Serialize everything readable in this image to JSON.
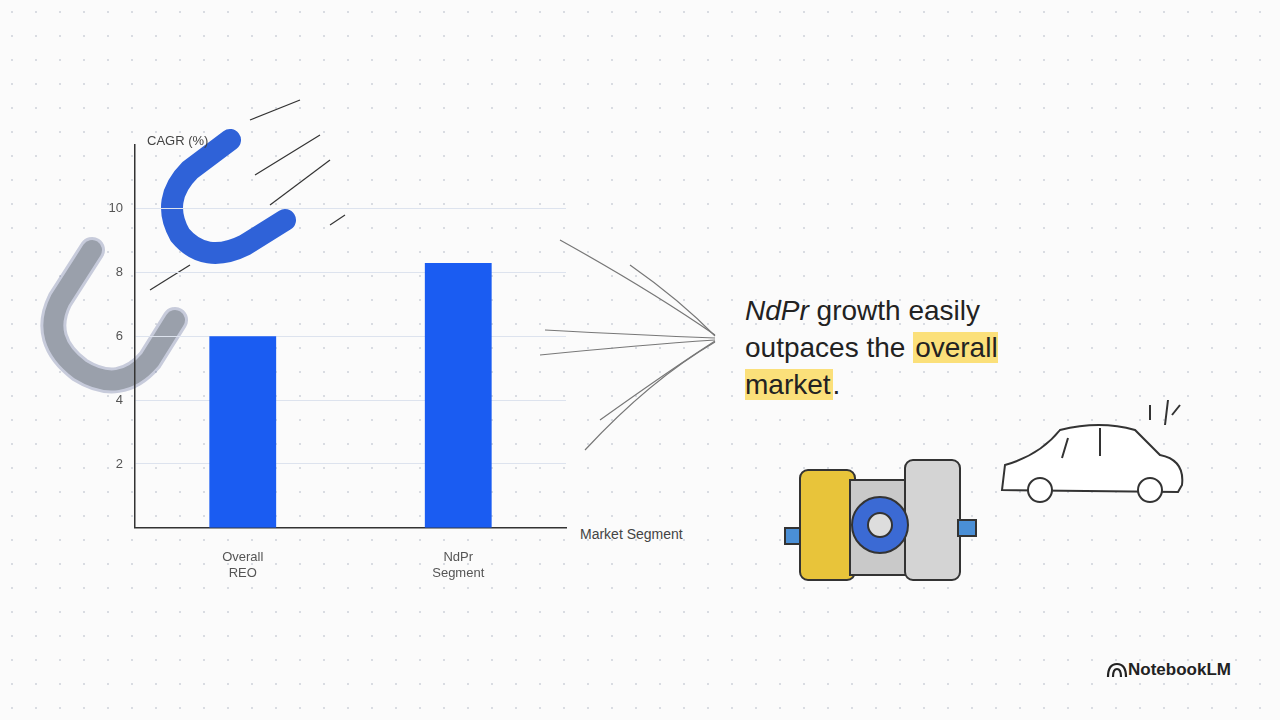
{
  "chart_data": {
    "type": "bar",
    "y_label": "CAGR (%)",
    "x_label": "Market Segment",
    "categories": [
      "Overall REO",
      "NdPr Segment"
    ],
    "values": [
      6.0,
      8.3
    ],
    "color": "#1a5cf2",
    "ylim": [
      0,
      12
    ],
    "yticks": [
      2,
      4,
      6,
      8,
      10
    ],
    "grid": true
  },
  "headline": {
    "parts": [
      {
        "text": "NdPr",
        "style": "italic"
      },
      {
        "text": " growth easily outpaces the "
      },
      {
        "text": "overall market",
        "style": "highlight"
      },
      {
        "text": "."
      }
    ]
  },
  "footer": "NotebookLM"
}
